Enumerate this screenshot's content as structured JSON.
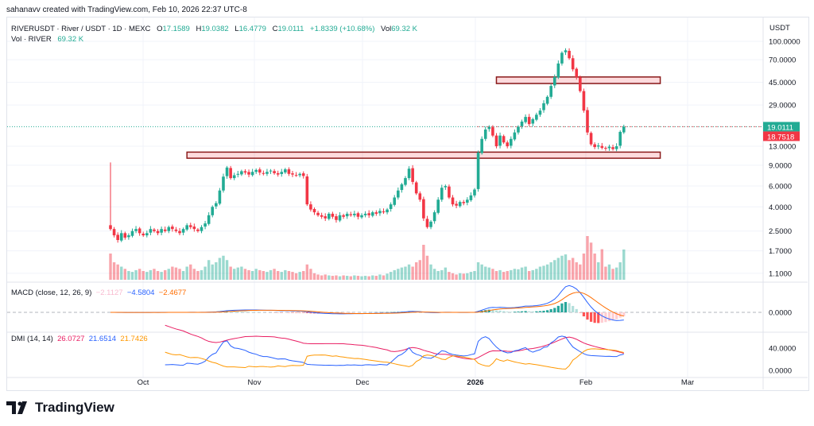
{
  "credit": "sahanavv created with TradingView.com, Feb 10, 2026 22:37 UTC-8",
  "symbol": {
    "title": "RIVERUSDT · River / USDT · 1D · MEXC",
    "o_label": "O",
    "o": "17.1589",
    "h_label": "H",
    "h": "19.0382",
    "l_label": "L",
    "l": "16.4779",
    "c_label": "C",
    "c": "19.0111",
    "change": "+1.8339 (+10.68%)",
    "vol_label": "Vol",
    "vol": "69.32 K"
  },
  "volume_legend": {
    "label": "Vol · RIVER",
    "value": "69.32 K"
  },
  "macd": {
    "label": "MACD (close, 12, 26, 9)",
    "hist": "−2.1127",
    "macd": "−4.5804",
    "signal": "−2.4677",
    "colors": {
      "hist": "#f8bbd0",
      "macd": "#2962ff",
      "signal": "#ff6d00"
    }
  },
  "dmi": {
    "label": "DMI (14, 14)",
    "adx": "26.0727",
    "plus": "21.6514",
    "minus": "21.7426",
    "colors": {
      "adx": "#e91e63",
      "plus": "#2962ff",
      "minus": "#ff9800"
    }
  },
  "price_axis": {
    "unit": "USDT",
    "ticks": [
      "100.0000",
      "70.0000",
      "45.0000",
      "29.0000",
      "13.0000",
      "9.0000",
      "6.0000",
      "4.0000",
      "2.5000",
      "1.7000",
      "1.1000"
    ],
    "last_price": "19.0111",
    "last_price_color": "#22ab94",
    "second_label": "18.7518",
    "second_label_color": "#f23645",
    "macd_ticks": [
      "0.0000"
    ],
    "dmi_ticks": [
      "40.0000",
      "0.0000"
    ]
  },
  "time_axis": [
    "Oct",
    "Nov",
    "Dec",
    "2026",
    "Feb",
    "Mar"
  ],
  "colors": {
    "up": "#22ab94",
    "down": "#f23645"
  },
  "logo": "TradingView",
  "chart_data": {
    "type": "candlestick",
    "scale": "log",
    "start_date": "2025-09-22",
    "interval": "1D",
    "closes": [
      2.6,
      2.3,
      2.1,
      2.4,
      2.2,
      2.3,
      2.5,
      2.6,
      2.4,
      2.3,
      2.4,
      2.6,
      2.5,
      2.4,
      2.6,
      2.5,
      2.7,
      2.6,
      2.5,
      2.4,
      2.6,
      2.8,
      2.7,
      2.6,
      2.5,
      2.7,
      2.9,
      3.4,
      4.0,
      4.3,
      5.5,
      7.2,
      8.6,
      7.0,
      7.4,
      7.6,
      8.0,
      7.8,
      7.5,
      7.9,
      8.2,
      7.8,
      7.6,
      7.9,
      8.1,
      7.7,
      7.5,
      7.9,
      8.3,
      7.6,
      7.5,
      7.4,
      7.6,
      7.3,
      4.2,
      3.8,
      3.6,
      3.4,
      3.3,
      3.2,
      3.5,
      3.3,
      3.1,
      3.4,
      3.3,
      3.5,
      3.4,
      3.5,
      3.3,
      3.4,
      3.5,
      3.4,
      3.6,
      3.5,
      3.7,
      3.6,
      3.8,
      4.2,
      4.8,
      5.5,
      6.2,
      7.0,
      8.4,
      6.5,
      5.2,
      4.6,
      3.2,
      2.7,
      3.0,
      3.6,
      4.6,
      5.8,
      6.0,
      4.8,
      4.2,
      4.1,
      4.4,
      4.3,
      4.6,
      5.0,
      5.6,
      11.5,
      15,
      18,
      19,
      16,
      13,
      16,
      14,
      13,
      15,
      17,
      19,
      21,
      23,
      20,
      22,
      24,
      26,
      30,
      34,
      42,
      50,
      65,
      80,
      84,
      72,
      58,
      50,
      38,
      26,
      17,
      13.5,
      12.8,
      13.2,
      12.6,
      12.4,
      12.9,
      12.3,
      13.0,
      17.2,
      19.0111
    ],
    "first_open": 2.8,
    "first_high": 9.5,
    "volumes_k": [
      60,
      40,
      35,
      30,
      25,
      20,
      18,
      22,
      25,
      20,
      18,
      22,
      25,
      20,
      18,
      22,
      25,
      30,
      28,
      25,
      20,
      30,
      35,
      25,
      20,
      22,
      30,
      45,
      35,
      40,
      50,
      55,
      45,
      30,
      25,
      28,
      30,
      25,
      22,
      20,
      25,
      22,
      20,
      18,
      22,
      25,
      20,
      18,
      22,
      20,
      18,
      15,
      18,
      20,
      35,
      25,
      15,
      12,
      10,
      12,
      10,
      9,
      10,
      8,
      10,
      9,
      8,
      10,
      9,
      8,
      9,
      8,
      10,
      9,
      12,
      10,
      14,
      18,
      22,
      25,
      28,
      30,
      35,
      30,
      40,
      45,
      80,
      55,
      35,
      25,
      20,
      22,
      28,
      18,
      15,
      12,
      15,
      14,
      15,
      18,
      20,
      40,
      35,
      30,
      28,
      25,
      20,
      22,
      18,
      20,
      22,
      25,
      24,
      28,
      30,
      20,
      22,
      25,
      30,
      32,
      35,
      40,
      45,
      50,
      55,
      58,
      45,
      50,
      40,
      35,
      60,
      100,
      85,
      60,
      40,
      70,
      30,
      35,
      25,
      28,
      40,
      69.32
    ],
    "zones": [
      {
        "low": 10.3,
        "high": 11.6,
        "from_day": 21,
        "to_day": 151
      },
      {
        "low": 44,
        "high": 50,
        "from_day": 106,
        "to_day": 151
      }
    ]
  }
}
